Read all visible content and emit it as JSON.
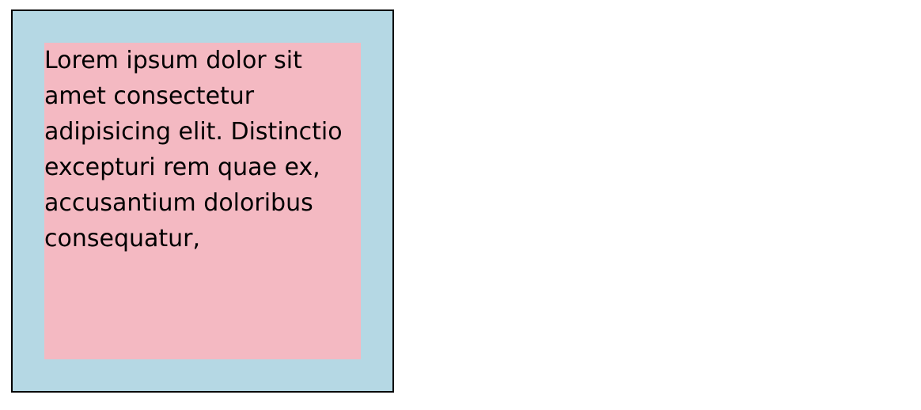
{
  "demo": {
    "text": "Lorem ipsum dolor sit amet consectetur adipisicing elit. Distinctio excepturi rem quae ex, accusantium doloribus consequatur,"
  },
  "colors": {
    "outer_background": "#b5d8e4",
    "inner_background": "#f4b9c2",
    "border": "#000000",
    "text": "#000000"
  }
}
